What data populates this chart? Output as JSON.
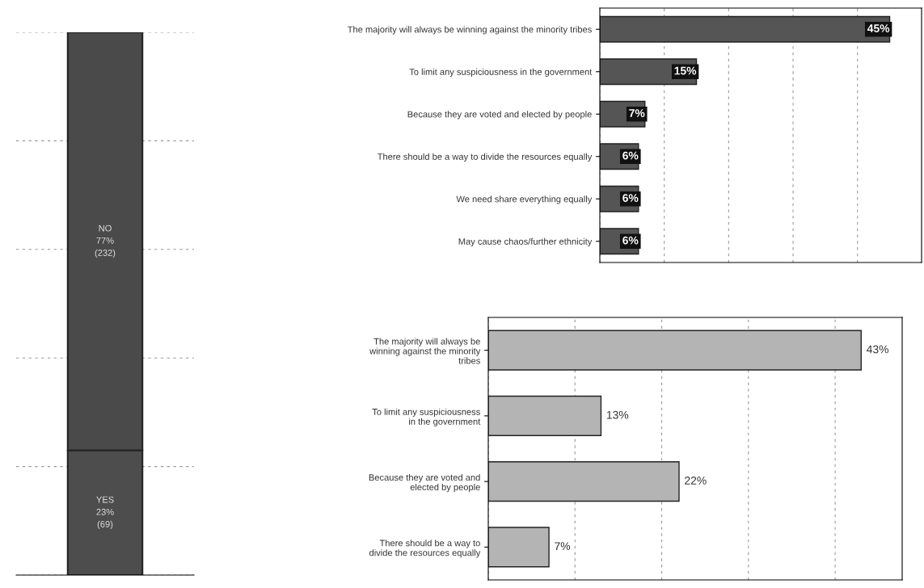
{
  "chart_data": [
    {
      "type": "bar",
      "stacked": true,
      "categories": [
        null
      ],
      "ylim": [
        0,
        100
      ],
      "yticks": [
        {
          "value": 0,
          "label": null
        },
        {
          "value": 20,
          "label": null
        },
        {
          "value": 40,
          "label": null
        },
        {
          "value": 60,
          "label": null
        },
        {
          "value": 80,
          "label": null
        },
        {
          "value": 100,
          "label": null
        }
      ],
      "grid": "y",
      "tick_labels": false,
      "series": [
        {
          "color": "#4d4d4d",
          "values": [
            23
          ],
          "value_labels": [
            "YES\n23%\n(69)"
          ]
        },
        {
          "color": "#4a4a4a",
          "values": [
            77
          ],
          "value_labels": [
            "NO\n77%\n(232)"
          ]
        }
      ]
    },
    {
      "type": "bar",
      "orientation": "horizontal",
      "categories": [
        "The majority will always be winning against the minority tribes",
        "To limit any suspiciousness in the government",
        "Because they are voted and elected by people",
        "There should be a way to divide the resources equally",
        "We need share everything equally",
        "May cause chaos/further ethnicity"
      ],
      "values": [
        45,
        15,
        7,
        6,
        6,
        6
      ],
      "value_labels": [
        "45%",
        "15%",
        "7%",
        "6%",
        "6%",
        "6%"
      ],
      "color": "#555555",
      "grid": "x",
      "tick_labels": "y"
    },
    {
      "type": "bar",
      "orientation": "horizontal",
      "categories": [
        "The majority will always be\nwinning against the minority\ntribes",
        "To limit any suspiciousness\nin the government",
        "Because they are voted and\nelected by people",
        "There should be a way to\ndivide the resources equally"
      ],
      "values": [
        43,
        13,
        22,
        7
      ],
      "value_labels": [
        "43%",
        "13%",
        "22%",
        "7%"
      ],
      "color": "#b4b4b4",
      "grid": "x",
      "tick_labels": "y"
    }
  ]
}
